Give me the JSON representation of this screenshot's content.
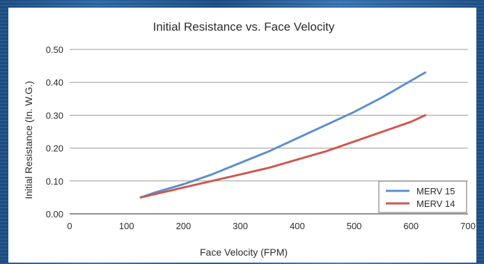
{
  "chart_data": {
    "type": "line",
    "title": "Initial Resistance vs. Face Velocity",
    "xlabel": "Face Velocity (FPM)",
    "ylabel": "Initial Resistance (In. W.G.)",
    "xlim": [
      0,
      700
    ],
    "ylim": [
      0,
      0.5
    ],
    "xticks": [
      "0",
      "100",
      "200",
      "300",
      "400",
      "500",
      "600",
      "700"
    ],
    "yticks": [
      "0.00",
      "0.10",
      "0.20",
      "0.30",
      "0.40",
      "0.50"
    ],
    "grid": "horizontal",
    "legend_position": "bottom-right",
    "series": [
      {
        "name": "MERV 15",
        "color": "#5b8fcf",
        "x": [
          125,
          150,
          200,
          250,
          300,
          350,
          400,
          450,
          500,
          550,
          600,
          625
        ],
        "y": [
          0.05,
          0.065,
          0.09,
          0.12,
          0.155,
          0.19,
          0.23,
          0.27,
          0.31,
          0.355,
          0.405,
          0.43
        ]
      },
      {
        "name": "MERV 14",
        "color": "#d0564d",
        "x": [
          125,
          150,
          200,
          250,
          300,
          350,
          400,
          450,
          500,
          550,
          600,
          625
        ],
        "y": [
          0.05,
          0.06,
          0.08,
          0.1,
          0.12,
          0.14,
          0.165,
          0.19,
          0.22,
          0.25,
          0.28,
          0.3
        ]
      }
    ]
  }
}
